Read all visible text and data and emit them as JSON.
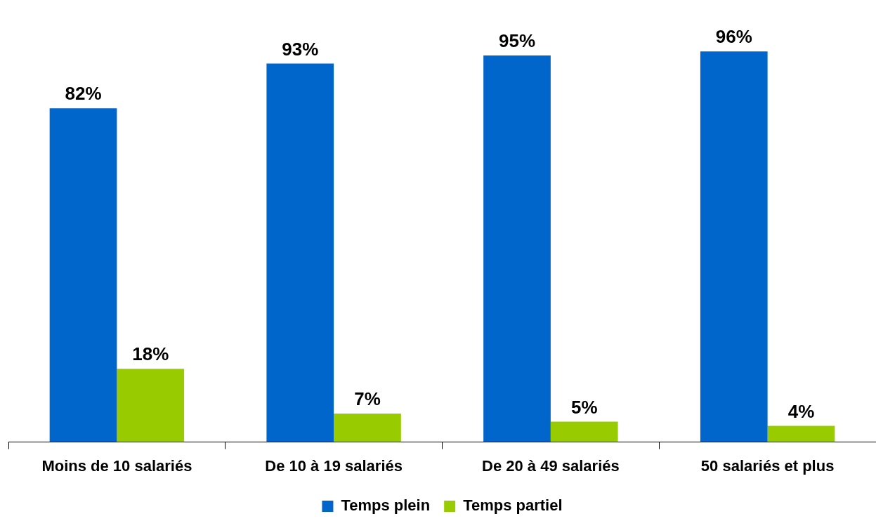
{
  "chart_data": {
    "type": "bar",
    "categories": [
      "Moins de 10 salariés",
      "De 10 à 19 salariés",
      "De 20 à 49 salariés",
      "50 salariés et plus"
    ],
    "series": [
      {
        "name": "Temps plein",
        "color": "#0066cc",
        "values": [
          82,
          93,
          95,
          96
        ],
        "value_labels": [
          "82%",
          "93%",
          "95%",
          "96%"
        ]
      },
      {
        "name": "Temps partiel",
        "color": "#99cc00",
        "values": [
          18,
          7,
          5,
          4
        ],
        "value_labels": [
          "18%",
          "7%",
          "5%",
          "4%"
        ]
      }
    ],
    "legend": "bottom",
    "grid": false
  }
}
